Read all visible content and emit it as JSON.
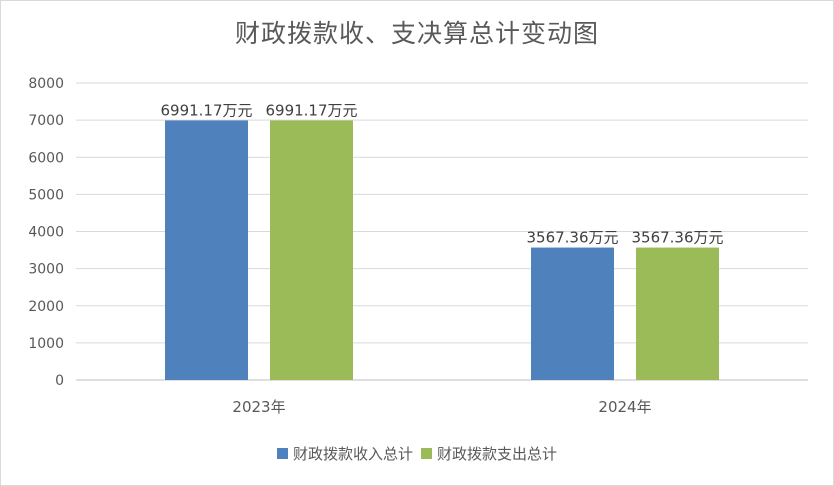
{
  "chart_data": {
    "type": "bar",
    "title": "财政拨款收、支决算总计变动图",
    "categories": [
      "2023年",
      "2024年"
    ],
    "series": [
      {
        "name": "财政拨款收入总计",
        "values": [
          6991.17,
          3567.36
        ],
        "labels": [
          "6991.17万元",
          "3567.36万元"
        ],
        "color": "#4f81bd"
      },
      {
        "name": "财政拨款支出总计",
        "values": [
          6991.17,
          3567.36
        ],
        "labels": [
          "6991.17万元",
          "3567.36万元"
        ],
        "color": "#9bbb59"
      }
    ],
    "ylim": [
      0,
      8000
    ],
    "yticks": [
      "0",
      "1000",
      "2000",
      "3000",
      "4000",
      "5000",
      "6000",
      "7000",
      "8000"
    ],
    "grid": true,
    "legend_position": "bottom"
  }
}
